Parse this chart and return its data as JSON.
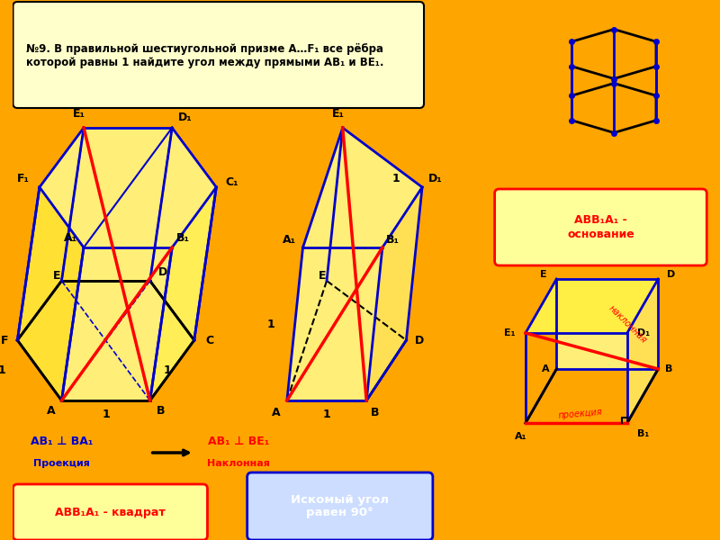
{
  "bg_color": "#FFA500",
  "title_box_color": "#FFFFCC",
  "title_text": "№9. В правильной шестиугольной призме A…F₁ все ребра\nкоторой равны 1 найдите угол между прямыми AB₁ и BE₁.",
  "yellow_fill": "#FFFF99",
  "blue_edge": "#0000CC",
  "black_edge": "#000000",
  "red_line": "#FF0000",
  "red_text": "#FF0000",
  "blue_text": "#0000CC",
  "dark_blue_text": "#000080",
  "label1_text": "ABB₁A₁ - квадрат",
  "label2_text": "Искомый угол\nравен 90°",
  "label3_text": "ABB₁A₁ -\nоснование",
  "proj_text": "AB₁ ⊥ BA₁",
  "proj_label": "Проекция",
  "incl_text": "AB₁ ⊥ BE₁",
  "incl_label": "Наклонная"
}
